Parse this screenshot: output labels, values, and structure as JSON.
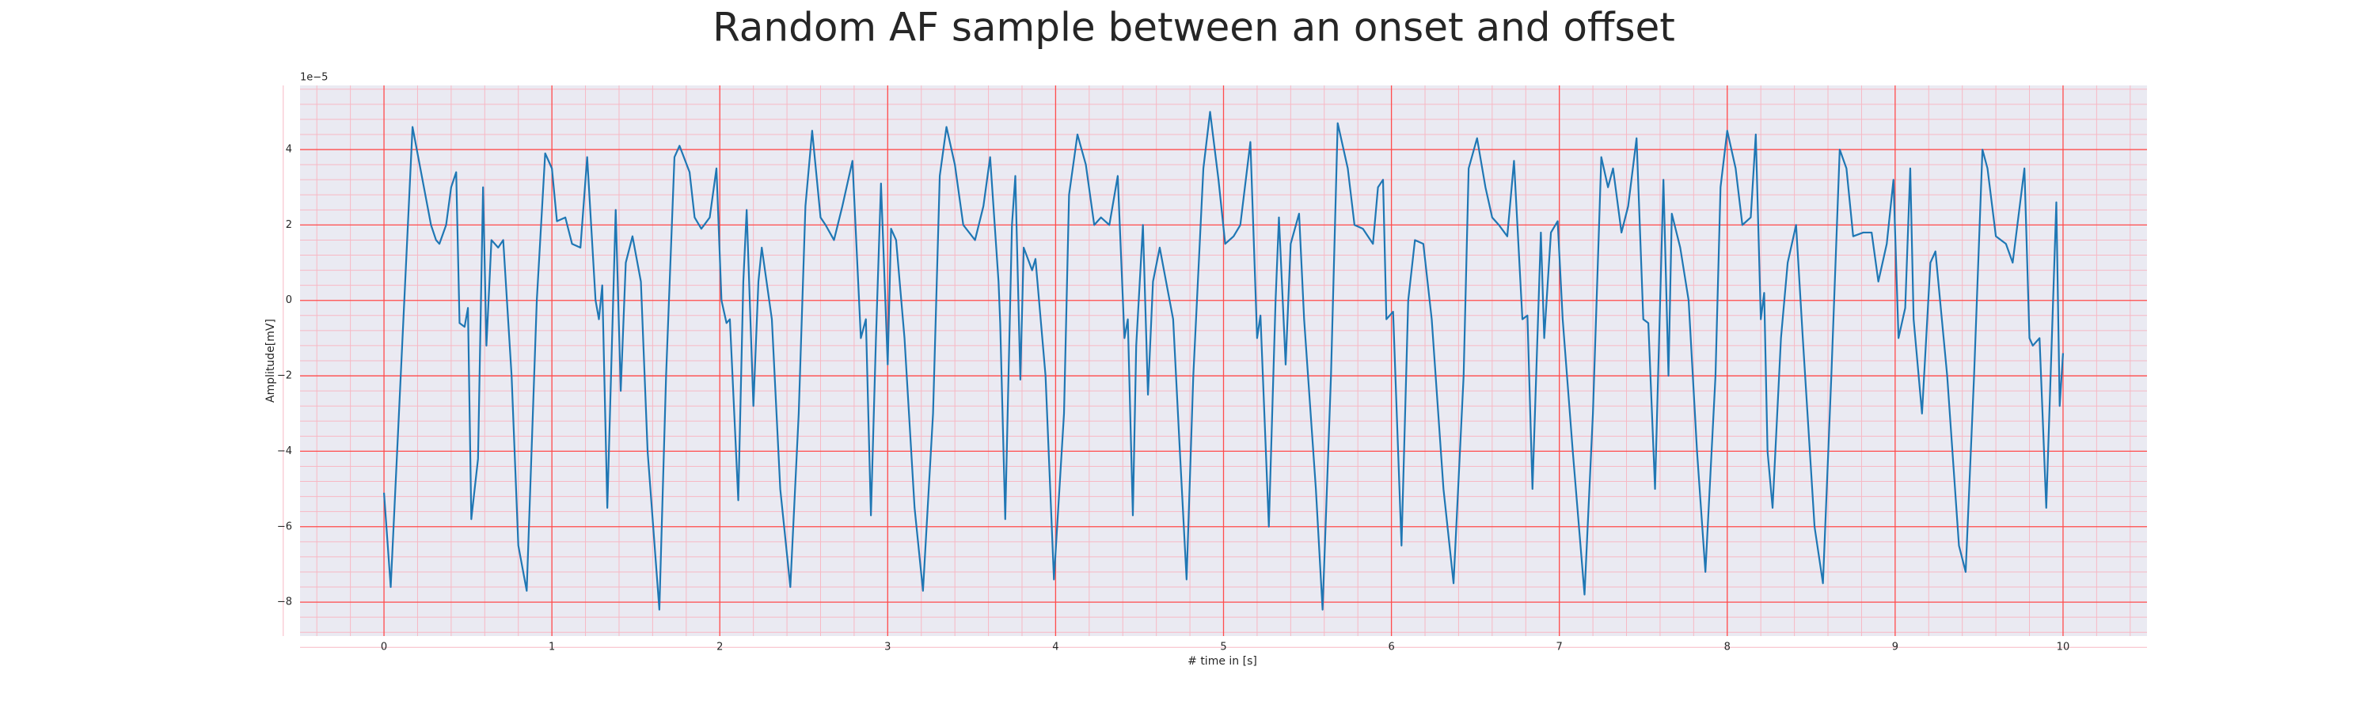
{
  "chart_data": {
    "type": "line",
    "title": "Random AF sample between an onset and offset",
    "x_label": "# time in [s]",
    "y_label": "Amplitude[mV]",
    "y_offset_text": "1e−5",
    "xlim": [
      -0.5,
      10.5
    ],
    "ylim": [
      -8.9,
      5.7
    ],
    "xticks": [
      0,
      1,
      2,
      3,
      4,
      5,
      6,
      7,
      8,
      9,
      10
    ],
    "yticks": [
      {
        "value": -8,
        "label": "−8"
      },
      {
        "value": -6,
        "label": "−6"
      },
      {
        "value": -4,
        "label": "−4"
      },
      {
        "value": -2,
        "label": "−2"
      },
      0,
      2,
      4
    ],
    "grid": true,
    "minor_grid": true,
    "grid_color": "#ff4d4d",
    "minor_grid_color": "#f7b8c4",
    "background": "#eaeaf2",
    "series": [
      {
        "color": "#1f77b4",
        "x": [
          0,
          0.04,
          0.17,
          0.28,
          0.31,
          0.33,
          0.37,
          0.4,
          0.43,
          0.45,
          0.48,
          0.5,
          0.52,
          0.56,
          0.59,
          0.61,
          0.64,
          0.68,
          0.71,
          0.76,
          0.8,
          0.85,
          0.91,
          0.96,
          1.0,
          1.03,
          1.08,
          1.12,
          1.17,
          1.21,
          1.26,
          1.28,
          1.3,
          1.33,
          1.38,
          1.41,
          1.44,
          1.48,
          1.53,
          1.57,
          1.64,
          1.68,
          1.73,
          1.76,
          1.82,
          1.85,
          1.89,
          1.94,
          1.98,
          2.01,
          2.04,
          2.06,
          2.11,
          2.14,
          2.16,
          2.2,
          2.23,
          2.25,
          2.31,
          2.36,
          2.42,
          2.47,
          2.51,
          2.55,
          2.6,
          2.63,
          2.68,
          2.73,
          2.79,
          2.84,
          2.87,
          2.9,
          2.93,
          2.96,
          3.0,
          3.02,
          3.05,
          3.1,
          3.16,
          3.21,
          3.27,
          3.31,
          3.35,
          3.4,
          3.45,
          3.52,
          3.57,
          3.61,
          3.66,
          3.67,
          3.7,
          3.74,
          3.76,
          3.79,
          3.81,
          3.86,
          3.88,
          3.94,
          3.99,
          4.05,
          4.08,
          4.13,
          4.18,
          4.23,
          4.27,
          4.32,
          4.37,
          4.41,
          4.43,
          4.46,
          4.48,
          4.52,
          4.55,
          4.58,
          4.62,
          4.7,
          4.74,
          4.78,
          4.82,
          4.88,
          4.92,
          4.97,
          5.01,
          5.06,
          5.1,
          5.16,
          5.2,
          5.22,
          5.27,
          5.31,
          5.33,
          5.37,
          5.4,
          5.45,
          5.48,
          5.55,
          5.59,
          5.64,
          5.68,
          5.74,
          5.78,
          5.83,
          5.89,
          5.92,
          5.95,
          5.97,
          6.01,
          6.06,
          6.1,
          6.14,
          6.19,
          6.24,
          6.31,
          6.37,
          6.43,
          6.46,
          6.51,
          6.56,
          6.6,
          6.64,
          6.69,
          6.73,
          6.78,
          6.81,
          6.84,
          6.89,
          6.91,
          6.95,
          6.99,
          7.02,
          7.08,
          7.15,
          7.2,
          7.25,
          7.29,
          7.32,
          7.37,
          7.41,
          7.46,
          7.5,
          7.53,
          7.57,
          7.62,
          7.65,
          7.67,
          7.72,
          7.77,
          7.82,
          7.87,
          7.93,
          7.96,
          8.0,
          8.05,
          8.09,
          8.14,
          8.17,
          8.2,
          8.22,
          8.24,
          8.27,
          8.32,
          8.36,
          8.41,
          8.45,
          8.52,
          8.57,
          8.62,
          8.67,
          8.71,
          8.75,
          8.81,
          8.86,
          8.9,
          8.95,
          8.99,
          9.02,
          9.06,
          9.09,
          9.11,
          9.16,
          9.21,
          9.24,
          9.31,
          9.38,
          9.42,
          9.47,
          9.52,
          9.55,
          9.6,
          9.66,
          9.7,
          9.77,
          9.8,
          9.82,
          9.86,
          9.9,
          9.96,
          9.98,
          10.0
        ],
        "values": [
          -5.1,
          -7.6,
          4.6,
          2.0,
          1.6,
          1.5,
          2.0,
          3.0,
          3.4,
          -0.6,
          -0.7,
          -0.2,
          -5.8,
          -4.2,
          3.0,
          -1.2,
          1.6,
          1.4,
          1.6,
          -2,
          -6.5,
          -7.7,
          0,
          3.9,
          3.5,
          2.1,
          2.2,
          1.5,
          1.4,
          3.8,
          0,
          -0.5,
          0.4,
          -5.5,
          2.4,
          -2.4,
          1.0,
          1.7,
          0.5,
          -4,
          -8.2,
          -2,
          3.8,
          4.1,
          3.4,
          2.2,
          1.9,
          2.2,
          3.5,
          0.0,
          -0.6,
          -0.5,
          -5.3,
          0.5,
          2.4,
          -2.8,
          0.5,
          1.4,
          -0.5,
          -5,
          -7.6,
          -3,
          2.5,
          4.5,
          2.2,
          2.0,
          1.6,
          2.5,
          3.7,
          -1.0,
          -0.5,
          -5.7,
          -1,
          3.1,
          -1.7,
          1.9,
          1.6,
          -1,
          -5.5,
          -7.7,
          -3,
          3.3,
          4.6,
          3.6,
          2.0,
          1.6,
          2.5,
          3.8,
          0.5,
          -0.6,
          -5.8,
          2.0,
          3.3,
          -2.1,
          1.4,
          0.8,
          1.1,
          -2,
          -7.4,
          -3,
          2.8,
          4.4,
          3.6,
          2.0,
          2.2,
          2.0,
          3.3,
          -1.0,
          -0.5,
          -5.7,
          -1.2,
          2.0,
          -2.5,
          0.5,
          1.4,
          -0.5,
          -4,
          -7.4,
          -2,
          3.5,
          5.0,
          3.2,
          1.5,
          1.7,
          2.0,
          4.2,
          -1.0,
          -0.4,
          -6,
          0,
          2.2,
          -1.7,
          1.5,
          2.3,
          -0.5,
          -5,
          -8.2,
          -2,
          4.7,
          3.5,
          2.0,
          1.9,
          1.5,
          3.0,
          3.2,
          -0.5,
          -0.3,
          -6.5,
          0,
          1.6,
          1.5,
          -0.5,
          -5,
          -7.5,
          -2,
          3.5,
          4.3,
          3.0,
          2.2,
          2.0,
          1.7,
          3.7,
          -0.5,
          -0.4,
          -5,
          1.8,
          -1,
          1.8,
          2.1,
          -0.5,
          -4,
          -7.8,
          -3,
          3.8,
          3.0,
          3.5,
          1.8,
          2.5,
          4.3,
          -0.5,
          -0.6,
          -5,
          3.2,
          -2,
          2.3,
          1.4,
          0,
          -4,
          -7.2,
          -2,
          3,
          4.5,
          3.5,
          2.0,
          2.2,
          4.4,
          -0.5,
          0.2,
          -4,
          -5.5,
          -1,
          1.0,
          2.0,
          -1,
          -6,
          -7.5,
          -2,
          4.0,
          3.5,
          1.7,
          1.8,
          1.8,
          0.5,
          1.5,
          3.2,
          -1.0,
          -0.2,
          3.5,
          -0.5,
          -3,
          1.0,
          1.3,
          -2,
          -6.5,
          -7.2,
          -2,
          4.0,
          3.5,
          1.7,
          1.5,
          1.0,
          3.5,
          -1,
          -1.2,
          -1.0,
          -5.5,
          2.6,
          -2.8,
          -1.4
        ]
      }
    ]
  }
}
